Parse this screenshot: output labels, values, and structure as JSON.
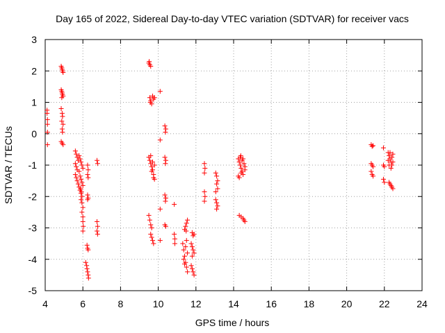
{
  "chart_data": {
    "type": "scatter",
    "title": "Day 165 of 2022, Sidereal Day-to-day VTEC variation (SDTVAR) for receiver vacs",
    "xlabel": "GPS time / hours",
    "ylabel": "SDTVAR / TECUs",
    "xlim": [
      4,
      24
    ],
    "ylim": [
      -5,
      3
    ],
    "xticks": [
      "4",
      "6",
      "8",
      "10",
      "12",
      "14",
      "16",
      "18",
      "20",
      "22",
      "24"
    ],
    "yticks": [
      "3",
      "2",
      "1",
      "0",
      "-1",
      "-2",
      "-3",
      "-4",
      "-5"
    ],
    "grid": true,
    "marker": "+",
    "color": "#ff0000",
    "series": [
      {
        "name": "SDTVAR",
        "points": [
          [
            4.1,
            0.75
          ],
          [
            4.1,
            0.65
          ],
          [
            4.12,
            0.45
          ],
          [
            4.12,
            0.3
          ],
          [
            4.12,
            0.05
          ],
          [
            4.12,
            -0.35
          ],
          [
            4.85,
            2.15
          ],
          [
            4.88,
            2.1
          ],
          [
            4.9,
            2.05
          ],
          [
            4.92,
            2.0
          ],
          [
            4.95,
            1.95
          ],
          [
            4.85,
            1.4
          ],
          [
            4.88,
            1.35
          ],
          [
            4.9,
            1.3
          ],
          [
            4.92,
            1.25
          ],
          [
            4.95,
            1.2
          ],
          [
            4.88,
            1.15
          ],
          [
            4.85,
            0.8
          ],
          [
            4.9,
            0.65
          ],
          [
            4.92,
            0.55
          ],
          [
            4.88,
            0.4
          ],
          [
            4.95,
            0.3
          ],
          [
            4.9,
            0.15
          ],
          [
            4.92,
            0.05
          ],
          [
            4.85,
            -0.25
          ],
          [
            4.9,
            -0.3
          ],
          [
            4.95,
            -0.35
          ],
          [
            5.6,
            -0.55
          ],
          [
            5.65,
            -0.65
          ],
          [
            5.7,
            -0.75
          ],
          [
            5.75,
            -0.85
          ],
          [
            5.6,
            -0.95
          ],
          [
            5.65,
            -1.05
          ],
          [
            5.7,
            -1.15
          ],
          [
            5.6,
            -1.3
          ],
          [
            5.65,
            -1.4
          ],
          [
            5.7,
            -1.5
          ],
          [
            5.75,
            -1.6
          ],
          [
            5.8,
            -1.7
          ],
          [
            5.85,
            -1.8
          ],
          [
            5.9,
            -1.9
          ],
          [
            5.95,
            -2.0
          ],
          [
            5.9,
            -2.1
          ],
          [
            5.95,
            -2.2
          ],
          [
            6.0,
            -2.35
          ],
          [
            5.95,
            -2.5
          ],
          [
            6.0,
            -2.65
          ],
          [
            6.0,
            -2.8
          ],
          [
            6.02,
            -2.95
          ],
          [
            6.0,
            -3.1
          ],
          [
            5.8,
            -0.7
          ],
          [
            5.85,
            -0.8
          ],
          [
            5.9,
            -0.9
          ],
          [
            5.95,
            -1.0
          ],
          [
            6.0,
            -1.1
          ],
          [
            5.8,
            -1.2
          ],
          [
            5.85,
            -1.35
          ],
          [
            5.9,
            -1.45
          ],
          [
            5.95,
            -1.55
          ],
          [
            6.0,
            -1.65
          ],
          [
            5.88,
            -1.75
          ],
          [
            5.92,
            -1.85
          ],
          [
            6.25,
            -1.0
          ],
          [
            6.28,
            -1.15
          ],
          [
            6.25,
            -1.3
          ],
          [
            6.28,
            -1.4
          ],
          [
            6.25,
            -1.95
          ],
          [
            6.28,
            -2.05
          ],
          [
            6.25,
            -2.1
          ],
          [
            6.22,
            -3.55
          ],
          [
            6.25,
            -3.65
          ],
          [
            6.28,
            -3.7
          ],
          [
            6.15,
            -4.1
          ],
          [
            6.2,
            -4.2
          ],
          [
            6.22,
            -4.3
          ],
          [
            6.25,
            -4.4
          ],
          [
            6.28,
            -4.5
          ],
          [
            6.3,
            -4.6
          ],
          [
            6.75,
            -0.85
          ],
          [
            6.78,
            -0.95
          ],
          [
            6.75,
            -2.8
          ],
          [
            6.78,
            -2.95
          ],
          [
            6.75,
            -3.1
          ],
          [
            6.78,
            -3.2
          ],
          [
            9.5,
            2.25
          ],
          [
            9.55,
            2.2
          ],
          [
            9.6,
            2.15
          ],
          [
            9.52,
            2.3
          ],
          [
            9.55,
            1.15
          ],
          [
            9.6,
            1.05
          ],
          [
            9.65,
            0.95
          ],
          [
            9.7,
            1.2
          ],
          [
            9.75,
            1.1
          ],
          [
            9.8,
            1.15
          ],
          [
            9.58,
            1.0
          ],
          [
            9.5,
            -0.75
          ],
          [
            9.55,
            -0.85
          ],
          [
            9.6,
            -0.95
          ],
          [
            9.65,
            -1.05
          ],
          [
            9.7,
            -1.15
          ],
          [
            9.75,
            -1.3
          ],
          [
            9.8,
            -1.45
          ],
          [
            9.6,
            -0.7
          ],
          [
            9.7,
            -0.9
          ],
          [
            9.8,
            -1.0
          ],
          [
            9.65,
            -1.2
          ],
          [
            9.75,
            -1.4
          ],
          [
            9.5,
            -2.6
          ],
          [
            9.55,
            -2.75
          ],
          [
            9.6,
            -2.9
          ],
          [
            9.65,
            -3.0
          ],
          [
            9.6,
            -3.2
          ],
          [
            9.65,
            -3.3
          ],
          [
            9.7,
            -3.4
          ],
          [
            9.75,
            -3.5
          ],
          [
            10.1,
            1.35
          ],
          [
            10.1,
            -0.2
          ],
          [
            10.1,
            -2.4
          ],
          [
            10.1,
            -3.4
          ],
          [
            10.35,
            0.25
          ],
          [
            10.4,
            0.15
          ],
          [
            10.38,
            0.05
          ],
          [
            10.35,
            -0.75
          ],
          [
            10.4,
            -0.85
          ],
          [
            10.38,
            -0.95
          ],
          [
            10.35,
            -1.95
          ],
          [
            10.4,
            -2.05
          ],
          [
            10.38,
            -2.15
          ],
          [
            10.35,
            -2.9
          ],
          [
            10.4,
            -2.95
          ],
          [
            10.85,
            -2.25
          ],
          [
            10.85,
            -3.2
          ],
          [
            10.88,
            -3.35
          ],
          [
            10.88,
            -3.5
          ],
          [
            11.4,
            -3.05
          ],
          [
            11.45,
            -2.95
          ],
          [
            11.5,
            -2.85
          ],
          [
            11.55,
            -2.75
          ],
          [
            11.48,
            -3.1
          ],
          [
            11.3,
            -3.5
          ],
          [
            11.35,
            -3.7
          ],
          [
            11.4,
            -3.9
          ],
          [
            11.45,
            -4.1
          ],
          [
            11.5,
            -4.25
          ],
          [
            11.55,
            -4.4
          ],
          [
            11.35,
            -4.0
          ],
          [
            11.4,
            -4.15
          ],
          [
            11.45,
            -3.6
          ],
          [
            11.5,
            -3.4
          ],
          [
            11.55,
            -3.8
          ],
          [
            11.8,
            -3.15
          ],
          [
            11.85,
            -3.25
          ],
          [
            11.9,
            -3.2
          ],
          [
            11.75,
            -3.5
          ],
          [
            11.8,
            -3.6
          ],
          [
            11.85,
            -3.7
          ],
          [
            11.9,
            -3.8
          ],
          [
            11.8,
            -3.9
          ],
          [
            11.75,
            -4.2
          ],
          [
            11.8,
            -4.3
          ],
          [
            11.85,
            -4.4
          ],
          [
            11.9,
            -4.5
          ],
          [
            12.45,
            -0.95
          ],
          [
            12.48,
            -1.1
          ],
          [
            12.45,
            -1.25
          ],
          [
            12.45,
            -1.85
          ],
          [
            12.48,
            -2.0
          ],
          [
            12.45,
            -2.15
          ],
          [
            13.05,
            -1.25
          ],
          [
            13.1,
            -1.35
          ],
          [
            13.15,
            -1.5
          ],
          [
            13.1,
            -1.6
          ],
          [
            13.15,
            -1.75
          ],
          [
            13.05,
            -1.85
          ],
          [
            13.05,
            -2.1
          ],
          [
            13.1,
            -2.2
          ],
          [
            13.15,
            -2.3
          ],
          [
            13.1,
            -2.4
          ],
          [
            14.25,
            -0.8
          ],
          [
            14.3,
            -0.9
          ],
          [
            14.35,
            -1.0
          ],
          [
            14.4,
            -1.1
          ],
          [
            14.45,
            -1.2
          ],
          [
            14.5,
            -1.3
          ],
          [
            14.3,
            -1.4
          ],
          [
            14.35,
            -0.75
          ],
          [
            14.45,
            -0.85
          ],
          [
            14.55,
            -0.95
          ],
          [
            14.6,
            -1.05
          ],
          [
            14.4,
            -1.25
          ],
          [
            14.38,
            -0.7
          ],
          [
            14.25,
            -1.35
          ],
          [
            14.6,
            -1.15
          ],
          [
            14.5,
            -0.8
          ],
          [
            14.3,
            -2.6
          ],
          [
            14.4,
            -2.65
          ],
          [
            14.5,
            -2.7
          ],
          [
            14.55,
            -2.75
          ],
          [
            14.6,
            -2.8
          ],
          [
            21.3,
            -0.35
          ],
          [
            21.35,
            -0.4
          ],
          [
            21.4,
            -0.38
          ],
          [
            21.3,
            -0.95
          ],
          [
            21.35,
            -1.0
          ],
          [
            21.4,
            -1.05
          ],
          [
            21.3,
            -1.2
          ],
          [
            21.35,
            -1.3
          ],
          [
            21.4,
            -1.35
          ],
          [
            21.95,
            -0.45
          ],
          [
            21.95,
            -1.0
          ],
          [
            22.0,
            -1.05
          ],
          [
            21.95,
            -1.45
          ],
          [
            22.0,
            -1.55
          ],
          [
            22.2,
            -0.6
          ],
          [
            22.25,
            -0.7
          ],
          [
            22.3,
            -0.8
          ],
          [
            22.35,
            -0.9
          ],
          [
            22.4,
            -1.0
          ],
          [
            22.45,
            -0.65
          ],
          [
            22.2,
            -0.85
          ],
          [
            22.25,
            -1.0
          ],
          [
            22.3,
            -0.6
          ],
          [
            22.4,
            -0.75
          ],
          [
            22.45,
            -0.9
          ],
          [
            22.35,
            -1.1
          ],
          [
            22.25,
            -1.55
          ],
          [
            22.3,
            -1.6
          ],
          [
            22.35,
            -1.65
          ],
          [
            22.4,
            -1.7
          ],
          [
            22.45,
            -1.75
          ]
        ]
      }
    ]
  }
}
